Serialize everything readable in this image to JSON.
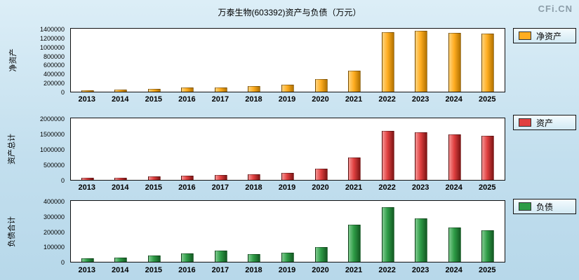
{
  "header": {
    "title": "万泰生物(603392)资产与负债（万元）",
    "watermark": "CFi.CN"
  },
  "chart_data": [
    {
      "type": "bar",
      "ylabel": "净资产",
      "legend": "净资产",
      "color": "#FFAD21",
      "color_light": "#FFD47E",
      "color_dark": "#B37200",
      "ylim": [
        0,
        1400000
      ],
      "ytick_step": 200000,
      "categories": [
        "2013",
        "2014",
        "2015",
        "2016",
        "2017",
        "2018",
        "2019",
        "2020",
        "2021",
        "2022",
        "2023",
        "2024",
        "2025"
      ],
      "values": [
        30000,
        45000,
        65000,
        95000,
        90000,
        130000,
        160000,
        280000,
        470000,
        1330000,
        1360000,
        1300000,
        1290000
      ]
    },
    {
      "type": "bar",
      "ylabel": "资产总计",
      "legend": "资产",
      "color": "#E04040",
      "color_light": "#F59494",
      "color_dark": "#7E1515",
      "ylim": [
        0,
        2000000
      ],
      "ytick_step": 500000,
      "categories": [
        "2013",
        "2014",
        "2015",
        "2016",
        "2017",
        "2018",
        "2019",
        "2020",
        "2021",
        "2022",
        "2023",
        "2024",
        "2025"
      ],
      "values": [
        60000,
        70000,
        105000,
        135000,
        165000,
        175000,
        230000,
        370000,
        730000,
        1600000,
        1550000,
        1470000,
        1430000
      ]
    },
    {
      "type": "bar",
      "ylabel": "负债合计",
      "legend": "负债",
      "color": "#2E9C46",
      "color_light": "#7FCB8F",
      "color_dark": "#145A23",
      "ylim": [
        0,
        400000
      ],
      "ytick_step": 100000,
      "categories": [
        "2013",
        "2014",
        "2015",
        "2016",
        "2017",
        "2018",
        "2019",
        "2020",
        "2021",
        "2022",
        "2023",
        "2024",
        "2025"
      ],
      "values": [
        25000,
        28000,
        42000,
        55000,
        75000,
        50000,
        62000,
        95000,
        245000,
        360000,
        285000,
        225000,
        205000
      ]
    }
  ]
}
